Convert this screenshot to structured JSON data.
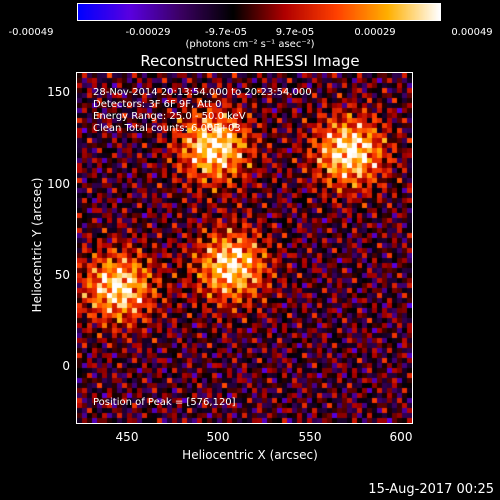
{
  "colorbar": {
    "ticks": [
      "-0.00049",
      "-0.00029",
      "-9.7e-05",
      "9.7e-05",
      "0.00029",
      "0.00049"
    ],
    "units": "(photons cm⁻² s⁻¹ asec⁻²)",
    "colors": [
      "#0000ff",
      "#5a00e0",
      "#3a0060",
      "#000000",
      "#b00000",
      "#ff4000",
      "#ffb000",
      "#ffffff"
    ]
  },
  "title": "Reconstructed RHESSI Image",
  "info": {
    "time": "28-Nov-2014 20:13:54.000 to 20:23:54.000",
    "detectors": "Detectors: 3F 6F 9F, Att 0",
    "energy": "Energy Range: 25.0 - 50.0 keV",
    "clean": "Clean    Total counts: 6.00E+03",
    "peak": "Position of Peak = [576,120]"
  },
  "axes": {
    "xlabel": "Heliocentric X (arcsec)",
    "ylabel": "Heliocentric Y (arcsec)",
    "xticks": [
      "450",
      "500",
      "550",
      "600"
    ],
    "yticks": [
      "150",
      "100",
      "50",
      "0"
    ],
    "xrange": [
      421,
      614
    ],
    "yrange": [
      -32,
      167
    ]
  },
  "timestamp": "15-Aug-2017 00:25",
  "sources": [
    {
      "x": 500,
      "y": 125,
      "strength": 1.0
    },
    {
      "x": 578,
      "y": 122,
      "strength": 1.0
    },
    {
      "x": 510,
      "y": 57,
      "strength": 0.95
    },
    {
      "x": 445,
      "y": 45,
      "strength": 0.95
    }
  ]
}
